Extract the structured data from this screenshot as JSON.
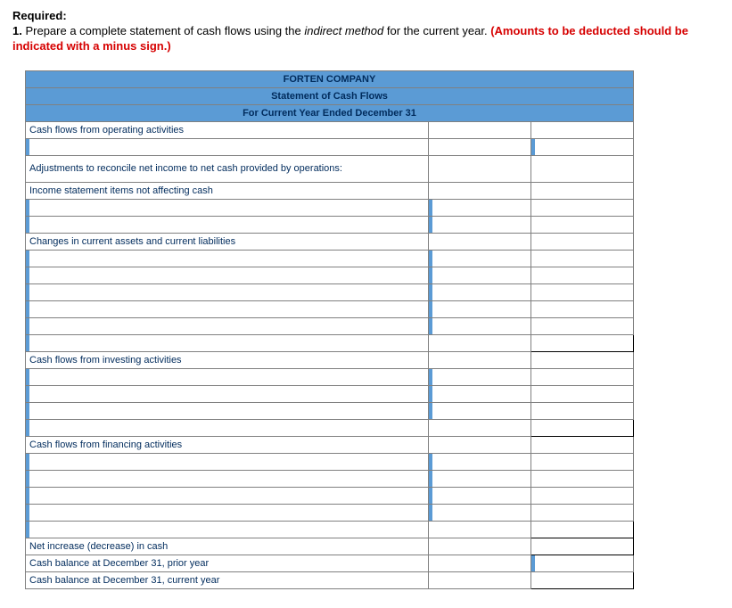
{
  "required_label": "Required:",
  "required_line_prefix": "1. ",
  "required_text_a": "Prepare a complete statement of cash flows using the ",
  "required_text_italic": "indirect method",
  "required_text_b": " for the current year. ",
  "required_text_red": "(Amounts to be deducted should be indicated with a minus sign.)",
  "header": {
    "company": "FORTEN COMPANY",
    "title": "Statement of Cash Flows",
    "period": "For Current Year Ended December 31"
  },
  "rows": {
    "op_header": "Cash flows from operating activities",
    "adjustments": "Adjustments to reconcile net income to net cash provided by operations:",
    "income_items": "Income statement items not affecting cash",
    "changes": "Changes in current assets and current liabilities",
    "inv_header": "Cash flows from investing activities",
    "fin_header": "Cash flows from financing activities",
    "net_change": "Net increase (decrease) in cash",
    "bal_prior": "Cash balance at December 31, prior year",
    "bal_current": "Cash balance at December 31, current year"
  },
  "colors": {
    "header_bg": "#5b9bd5",
    "header_text": "#002b5c",
    "border": "#808080",
    "input_handle": "#5b9bd5",
    "red": "#d60000"
  }
}
